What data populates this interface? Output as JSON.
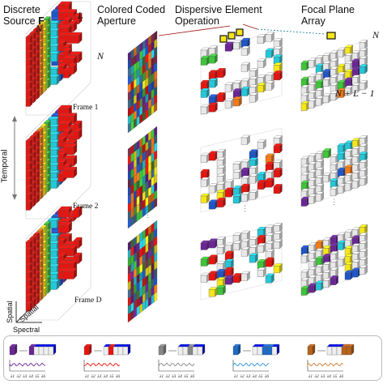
{
  "headers": {
    "discrete_source": "Discrete\nSource ",
    "discrete_source_bold": "F",
    "coded_aperture": "Colored Coded\nAperture",
    "dispersive": "Dispersive Element\nOperation",
    "focal_plane": "Focal Plane\nArray"
  },
  "dims": {
    "N_top": "N",
    "L": "L",
    "N_side": "N",
    "N_fpa": "N",
    "N_plus_L": "N + L − 1"
  },
  "frames": [
    "Frame 1",
    "Frame 2",
    "Frame D"
  ],
  "temporal_label": "Temporal",
  "axes": {
    "spatial_1": "Spatial",
    "spatial_2": "Spatial",
    "spectral": "Spectral"
  },
  "legend_ticks": [
    "λ1",
    "λ2",
    "λ3",
    "λ4",
    "λ5",
    "λ6"
  ],
  "colors": {
    "red": "#e8140f",
    "orange": "#f47a17",
    "yellow": "#f5e61a",
    "green": "#3fc43a",
    "cyan": "#25c6d8",
    "blue": "#1e55c8",
    "purple": "#6b2596",
    "gray": "#e8e8e8",
    "legend_colors": [
      "#6b2596",
      "#e8140f",
      "#888888",
      "#1e6bc8",
      "#b8621a"
    ],
    "legend_curves": [
      "#6b2596",
      "#e8140f",
      "#888888",
      "#2a8fd6",
      "#c87a30"
    ]
  }
}
